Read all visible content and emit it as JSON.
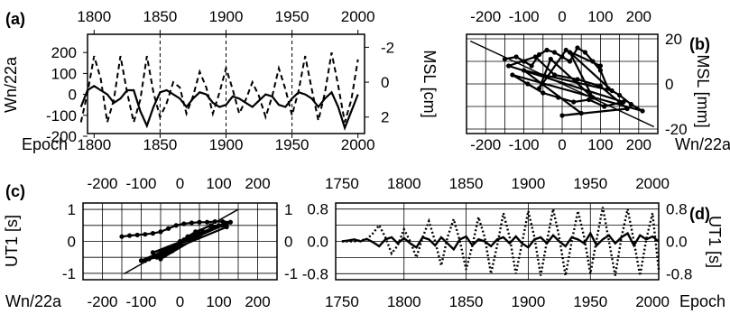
{
  "chart_data": [
    {
      "panel": "(a)",
      "type": "line",
      "x_top": {
        "ticks": [
          1800,
          1850,
          1900,
          1950,
          2000
        ]
      },
      "x_bottom": {
        "label": "Epoch",
        "ticks": [
          1800,
          1850,
          1900,
          1950,
          2000
        ]
      },
      "y_left": {
        "label": "Wn/22a",
        "ticks": [
          200,
          100,
          0,
          -100,
          -200
        ],
        "ylim": [
          -200,
          300
        ]
      },
      "y_right": {
        "label": "MSL [cm]",
        "ticks": [
          -2,
          0,
          2
        ],
        "ylim": [
          3.1,
          -2.9
        ],
        "inverted": true
      },
      "grid": "vertical dashed at 50-year intervals",
      "series": [
        {
          "axis": "left",
          "style": "solid",
          "x": [
            1790,
            1795,
            1800,
            1805,
            1810,
            1815,
            1820,
            1825,
            1830,
            1835,
            1840,
            1845,
            1850,
            1855,
            1860,
            1865,
            1870,
            1875,
            1880,
            1885,
            1890,
            1895,
            1900,
            1905,
            1910,
            1915,
            1920,
            1925,
            1930,
            1935,
            1940,
            1945,
            1950,
            1955,
            1960,
            1965,
            1970,
            1975,
            1980,
            1985,
            1990,
            1995,
            2000
          ],
          "y": [
            -60,
            20,
            40,
            20,
            0,
            -40,
            -20,
            20,
            20,
            -80,
            -150,
            -60,
            10,
            20,
            0,
            -20,
            -60,
            -20,
            10,
            0,
            -40,
            -60,
            -50,
            -10,
            -20,
            -40,
            -60,
            -30,
            0,
            -10,
            -50,
            -60,
            -20,
            10,
            0,
            -20,
            -60,
            -20,
            10,
            -60,
            -160,
            -80,
            0
          ]
        },
        {
          "axis": "right",
          "style": "dashed",
          "x": [
            1790,
            1795,
            1800,
            1805,
            1810,
            1815,
            1820,
            1825,
            1830,
            1835,
            1840,
            1845,
            1850,
            1855,
            1860,
            1865,
            1870,
            1875,
            1880,
            1885,
            1890,
            1895,
            1900,
            1905,
            1910,
            1915,
            1920,
            1925,
            1930,
            1935,
            1940,
            1945,
            1950,
            1955,
            1960,
            1965,
            1970,
            1975,
            1980,
            1985,
            1990,
            1995,
            2000
          ],
          "y": [
            2.3,
            0.6,
            -1.5,
            -0.2,
            2.3,
            1.0,
            -1.5,
            0.6,
            2.3,
            1.0,
            -1.5,
            0.6,
            2.0,
            1.2,
            0.0,
            0.3,
            1.8,
            0.8,
            -0.6,
            0.3,
            1.8,
            0.6,
            -0.8,
            0.4,
            1.8,
            1.0,
            0.0,
            0.8,
            2.0,
            0.8,
            -0.8,
            0.4,
            1.9,
            0.5,
            -1.5,
            0.4,
            2.2,
            0.6,
            -1.7,
            0.2,
            2.3,
            1.0,
            -1.3
          ]
        }
      ]
    },
    {
      "panel": "(b)",
      "type": "scatter",
      "x_top": {
        "ticks": [
          -200,
          -100,
          0,
          100,
          200
        ]
      },
      "x_bottom": {
        "label": "Wn/22a",
        "ticks": [
          -200,
          -100,
          0,
          100,
          200
        ],
        "xlim": [
          -250,
          250
        ]
      },
      "y_right": {
        "label": "MSL [mm]",
        "ticks": [
          20,
          0,
          -20
        ],
        "ylim": [
          -22,
          22
        ]
      },
      "grid": "on",
      "regression_line": {
        "x": [
          -240,
          240
        ],
        "y": [
          19,
          -19
        ]
      },
      "points": {
        "x": [
          -150,
          -120,
          -100,
          -80,
          -60,
          -40,
          -20,
          0,
          20,
          40,
          60,
          80,
          100,
          120,
          150,
          180,
          210,
          -130,
          -90,
          -50,
          -10,
          30,
          70,
          110,
          160,
          -140,
          -70,
          -20,
          40,
          100,
          170,
          0,
          50,
          -100,
          130,
          20,
          80,
          -30,
          -60,
          10,
          100
        ],
        "y": [
          11,
          12,
          10,
          8,
          13,
          15,
          14,
          12,
          10,
          16,
          14,
          10,
          6,
          -2,
          -5,
          -9,
          -12,
          4,
          0,
          -4,
          -6,
          -8,
          -7,
          -10,
          -8,
          8,
          12,
          4,
          2,
          -1,
          -11,
          -14,
          -13,
          6,
          -3,
          14,
          -6,
          11,
          -2,
          15,
          8
        ]
      }
    },
    {
      "panel": "(c)",
      "type": "scatter",
      "x_top": {
        "ticks": [
          -200,
          -100,
          0,
          100,
          200
        ]
      },
      "x_bottom": {
        "label": "Wn/22a",
        "ticks": [
          -200,
          -100,
          0,
          100,
          200
        ],
        "xlim": [
          -250,
          250
        ]
      },
      "y_left": {
        "label": "UT1 [s]",
        "ticks": [
          1,
          0,
          -1
        ],
        "ylim": [
          -1.2,
          1.2
        ]
      },
      "y_right": {
        "ticks": [
          1,
          0,
          -1
        ]
      },
      "grid": "on",
      "regression_line": {
        "x": [
          -145,
          150
        ],
        "y": [
          -1.02,
          1.0
        ]
      },
      "points": {
        "x": [
          -150,
          -130,
          -110,
          -90,
          -70,
          -50,
          -30,
          -10,
          10,
          30,
          50,
          70,
          90,
          110,
          130,
          -100,
          -80,
          -60,
          -40,
          -20,
          0,
          20,
          40,
          60,
          80,
          100,
          120,
          -70,
          -30,
          10,
          50,
          90,
          -50,
          0,
          40,
          80,
          120,
          -90,
          -40,
          20
        ],
        "y": [
          0.15,
          0.18,
          0.2,
          0.22,
          0.25,
          0.3,
          0.4,
          0.5,
          0.55,
          0.58,
          0.6,
          0.6,
          0.62,
          0.62,
          0.6,
          -0.6,
          -0.55,
          -0.5,
          -0.45,
          -0.3,
          -0.1,
          0.1,
          0.2,
          0.3,
          0.4,
          0.5,
          0.55,
          -0.35,
          -0.2,
          0.05,
          0.25,
          0.45,
          -0.55,
          0.0,
          0.3,
          0.5,
          0.45,
          -0.6,
          -0.4,
          0.15
        ]
      }
    },
    {
      "panel": "(d)",
      "type": "line",
      "x_top": {
        "ticks": [
          1750,
          1800,
          1850,
          1900,
          1950,
          2000
        ]
      },
      "x_bottom": {
        "label": "Epoch",
        "ticks": [
          1750,
          1800,
          1850,
          1900,
          1950,
          2000
        ],
        "xlim": [
          1745,
          2005
        ]
      },
      "y_left": {
        "ticks": [
          0.8,
          0.0,
          -0.8
        ],
        "ylim": [
          -0.95,
          0.95
        ]
      },
      "y_right": {
        "label": "UT1 [s]",
        "ticks": [
          0.8,
          0.0,
          -0.8
        ]
      },
      "grid": "on",
      "series": [
        {
          "style": "solid",
          "x": [
            1750,
            1755,
            1760,
            1765,
            1770,
            1775,
            1780,
            1785,
            1790,
            1795,
            1800,
            1805,
            1810,
            1815,
            1820,
            1825,
            1830,
            1835,
            1840,
            1845,
            1850,
            1855,
            1860,
            1865,
            1870,
            1875,
            1880,
            1885,
            1890,
            1895,
            1900,
            1905,
            1910,
            1915,
            1920,
            1925,
            1930,
            1935,
            1940,
            1945,
            1950,
            1955,
            1960,
            1965,
            1970,
            1975,
            1980,
            1985,
            1990,
            1995,
            2000,
            2005
          ],
          "y": [
            0.0,
            0.02,
            0.05,
            0.0,
            0.06,
            -0.02,
            -0.12,
            0.05,
            0.1,
            -0.05,
            0.08,
            -0.05,
            -0.15,
            0.1,
            0.05,
            -0.1,
            0.1,
            -0.05,
            -0.2,
            0.05,
            0.12,
            -0.1,
            0.05,
            0.0,
            -0.12,
            0.05,
            0.1,
            -0.05,
            0.12,
            -0.05,
            -0.15,
            0.05,
            0.1,
            -0.05,
            0.15,
            0.0,
            -0.12,
            0.1,
            0.05,
            -0.05,
            0.2,
            -0.1,
            0.05,
            0.15,
            -0.05,
            0.1,
            0.2,
            -0.1,
            0.15,
            0.05,
            0.12,
            0.0
          ]
        },
        {
          "style": "dotted",
          "x": [
            1750,
            1760,
            1770,
            1775,
            1780,
            1785,
            1790,
            1795,
            1800,
            1805,
            1810,
            1815,
            1820,
            1825,
            1830,
            1835,
            1840,
            1845,
            1850,
            1855,
            1860,
            1865,
            1870,
            1875,
            1880,
            1885,
            1890,
            1895,
            1900,
            1905,
            1910,
            1915,
            1920,
            1925,
            1930,
            1935,
            1940,
            1945,
            1950,
            1955,
            1960,
            1965,
            1970,
            1975,
            1980,
            1985,
            1990,
            1995,
            2000,
            2005
          ],
          "y": [
            0.0,
            0.0,
            0.05,
            0.2,
            0.4,
            0.1,
            -0.3,
            -0.1,
            0.3,
            0.0,
            -0.4,
            0.1,
            0.5,
            0.0,
            -0.6,
            0.1,
            0.55,
            0.0,
            -0.7,
            -0.1,
            0.6,
            0.1,
            -0.8,
            -0.1,
            0.7,
            0.1,
            -0.8,
            -0.05,
            0.75,
            0.1,
            -0.85,
            0.0,
            0.8,
            0.1,
            -0.85,
            0.0,
            0.75,
            0.1,
            -0.8,
            0.05,
            0.85,
            0.0,
            -0.85,
            0.1,
            0.8,
            0.0,
            -0.85,
            0.05,
            0.7,
            -0.7
          ]
        }
      ]
    }
  ],
  "labels": {
    "a": "(a)",
    "b": "(b)",
    "c": "(c)",
    "d": "(d)"
  },
  "tick_text": {
    "a_top": [
      "1800",
      "1850",
      "1900",
      "1950",
      "2000"
    ],
    "a_bottom": [
      "1800",
      "1850",
      "1900",
      "1950",
      "2000"
    ],
    "a_left": [
      "200",
      "100",
      "0",
      "-100",
      "-200"
    ],
    "a_right": [
      "-2",
      "0",
      "2"
    ],
    "b_top": [
      "-200",
      "-100",
      "0",
      "100",
      "200"
    ],
    "b_bottom": [
      "-200",
      "-100",
      "0",
      "100",
      "200"
    ],
    "b_right": [
      "20",
      "0",
      "-20"
    ],
    "c_top": [
      "-200",
      "-100",
      "0",
      "100",
      "200"
    ],
    "c_bottom": [
      "-200",
      "-100",
      "0",
      "100",
      "200"
    ],
    "c_left": [
      "1",
      "0",
      "-1"
    ],
    "c_right": [
      "1",
      "0",
      "-1"
    ],
    "d_top": [
      "1750",
      "1800",
      "1850",
      "1900",
      "1950",
      "2000"
    ],
    "d_bottom": [
      "1750",
      "1800",
      "1850",
      "1900",
      "1950",
      "2000"
    ],
    "d_left": [
      "0.8",
      "0.0",
      "-0.8"
    ],
    "d_right": [
      "0.8",
      "0.0",
      "-0.8"
    ]
  },
  "axis_titles": {
    "a_left": "Wn/22a",
    "a_bottom": "Epoch",
    "a_right": "MSL [cm]",
    "b_right": "MSL [mm]",
    "b_bottom": "Wn/22a",
    "c_left": "UT1 [s]",
    "c_bottom": "Wn/22a",
    "d_right": "UT1 [s]",
    "d_bottom": "Epoch"
  }
}
